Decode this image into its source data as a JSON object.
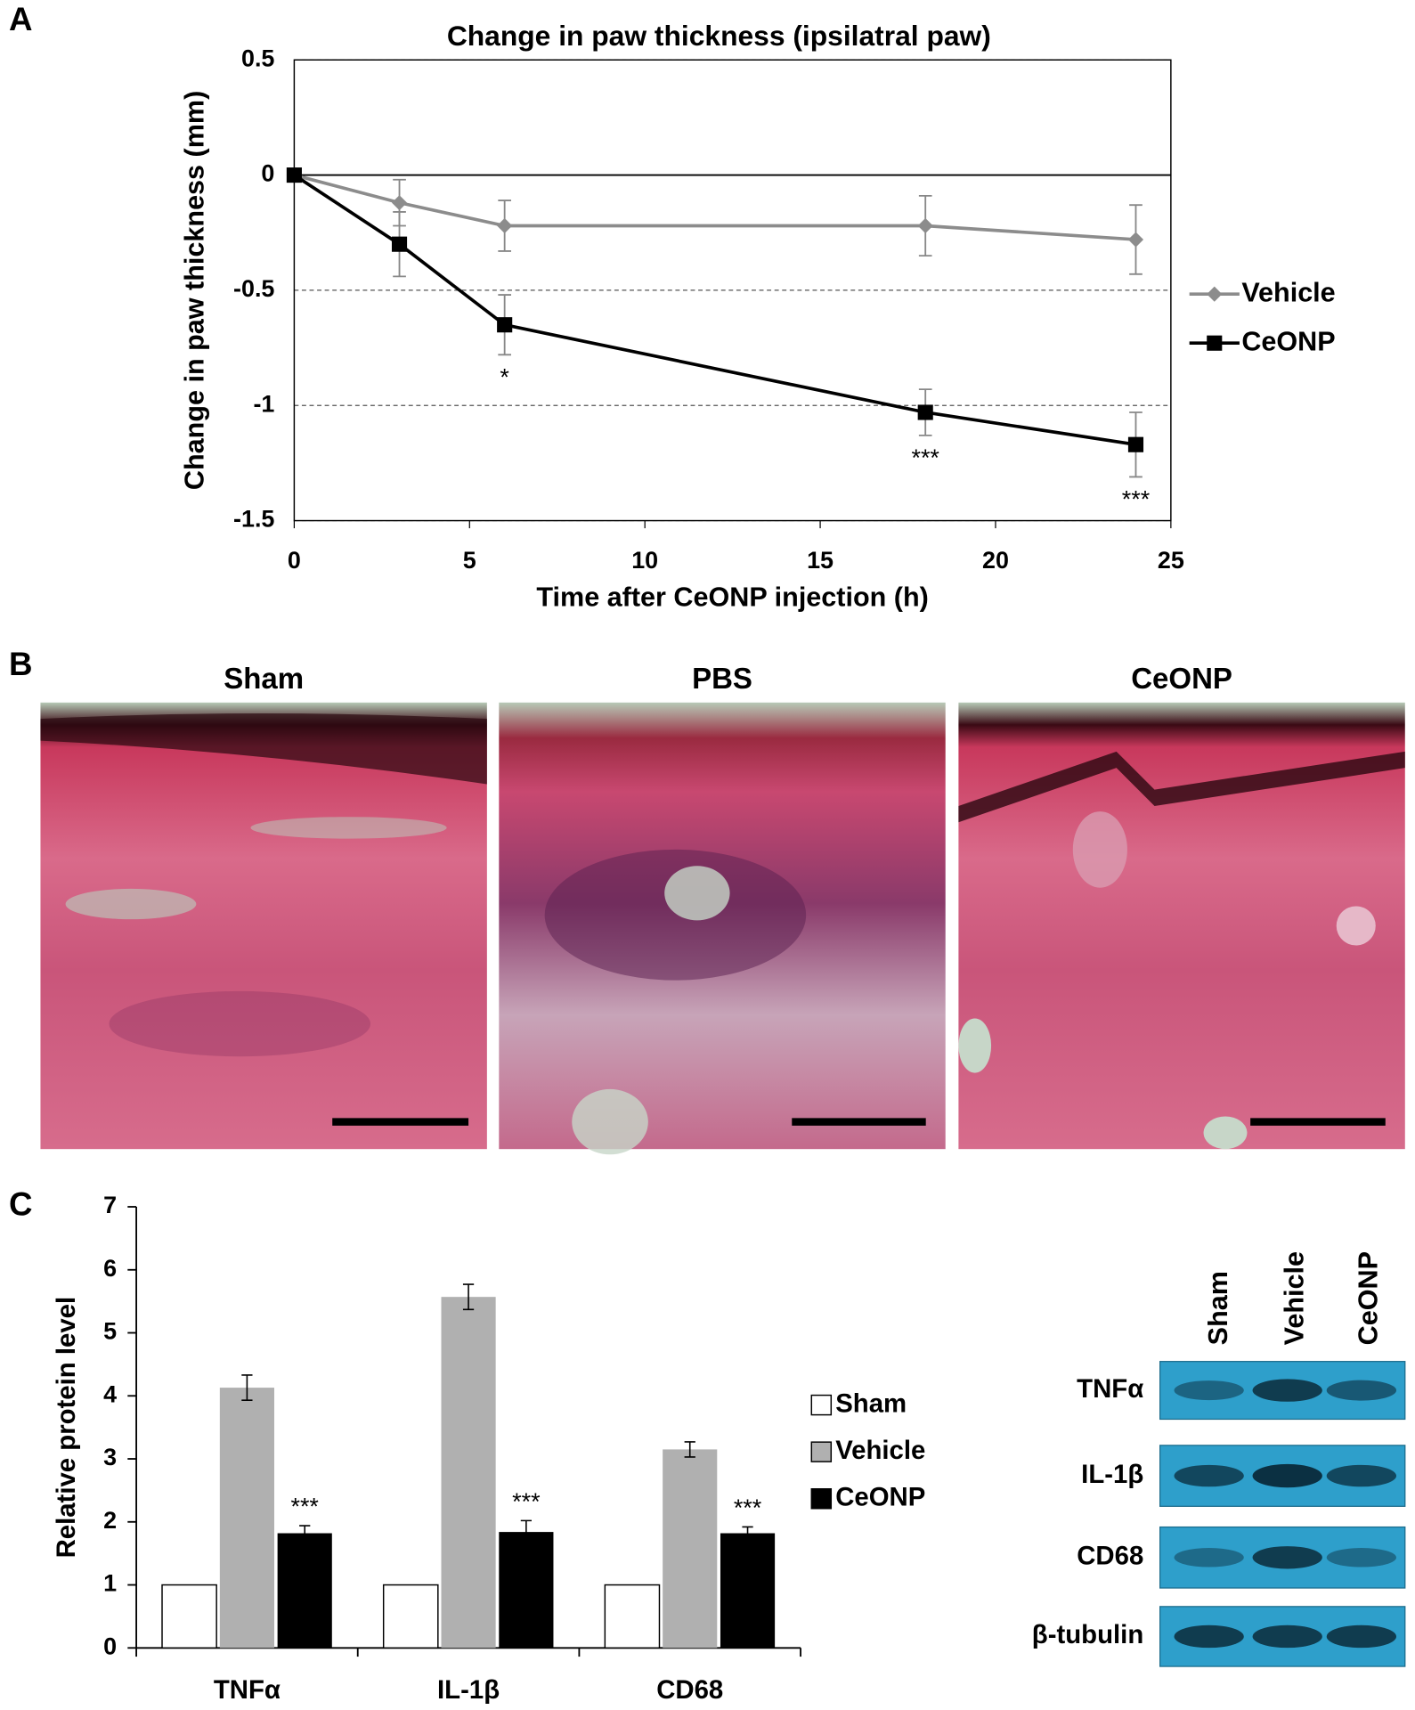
{
  "panel_labels": [
    "A",
    "B",
    "C"
  ],
  "chart_data": [
    {
      "type": "line",
      "title": "Change in paw thickness (ipsilatral paw)",
      "x_label": "Time after CeONP injection (h)",
      "y_label": "Change in paw thickness (mm)",
      "x": [
        0,
        3,
        6,
        18,
        24
      ],
      "series": [
        {
          "name": "Vehicle",
          "color": "#8c8c8c",
          "marker": "diamond",
          "values": [
            0,
            -0.12,
            -0.22,
            -0.22,
            -0.28
          ],
          "errors": [
            0,
            0.1,
            0.11,
            0.13,
            0.15
          ]
        },
        {
          "name": "CeONP",
          "color": "#000000",
          "marker": "square",
          "values": [
            0,
            -0.3,
            -0.65,
            -1.03,
            -1.17
          ],
          "errors": [
            0,
            0.14,
            0.13,
            0.1,
            0.14
          ],
          "point_labels": [
            null,
            null,
            "*",
            "***",
            "***"
          ]
        }
      ],
      "xlim": [
        0,
        25
      ],
      "xticks": [
        0,
        5,
        10,
        15,
        20,
        25
      ],
      "ylim": [
        -1.5,
        0.5
      ],
      "yticks": [
        0.5,
        0,
        -0.5,
        -1,
        -1.5
      ],
      "grid": true,
      "legend": "right"
    },
    {
      "type": "bar",
      "y_label": "Relative protein level",
      "categories": [
        "TNFα",
        "IL-1β",
        "CD68"
      ],
      "series": [
        {
          "name": "Sham",
          "color": "#ffffff",
          "values": [
            1,
            1,
            1
          ]
        },
        {
          "name": "Vehicle",
          "color": "#b0b0b0",
          "values": [
            4.13,
            5.57,
            3.15
          ],
          "errors": [
            0.2,
            0.2,
            0.12
          ]
        },
        {
          "name": "CeONP",
          "color": "#000000",
          "values": [
            1.82,
            1.84,
            1.82
          ],
          "errors": [
            0.12,
            0.18,
            0.1
          ],
          "point_labels": [
            "***",
            "***",
            "***"
          ]
        }
      ],
      "ylim": [
        0,
        7
      ],
      "yticks": [
        0,
        1,
        2,
        3,
        4,
        5,
        6,
        7
      ],
      "grid": false,
      "legend": "right"
    }
  ],
  "histology": {
    "titles": [
      "Sham",
      "PBS",
      "CeONP"
    ]
  },
  "blot": {
    "lanes": [
      "Sham",
      "Vehicle",
      "CeONP"
    ],
    "rows": [
      "TNFα",
      "IL-1β",
      "CD68",
      "β-tubulin"
    ]
  }
}
